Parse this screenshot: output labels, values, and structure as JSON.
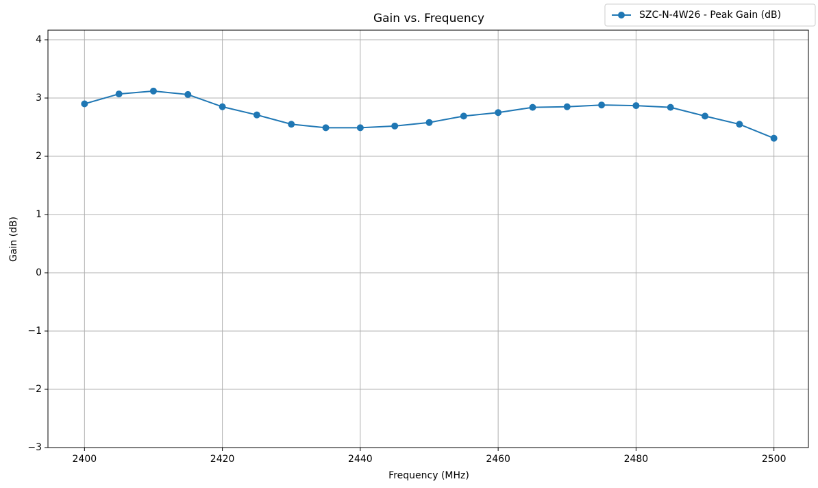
{
  "chart_data": {
    "type": "line",
    "title": "Gain vs. Frequency",
    "x_label": "Frequency (MHz)",
    "y_label": "Gain (dB)",
    "x": [
      2400,
      2405,
      2410,
      2415,
      2420,
      2425,
      2430,
      2435,
      2440,
      2445,
      2450,
      2455,
      2460,
      2465,
      2470,
      2475,
      2480,
      2485,
      2490,
      2495,
      2500
    ],
    "series": [
      {
        "name": "SZC-N-4W26 - Peak Gain (dB)",
        "color": "#1f77b4",
        "values": [
          2.9,
          3.07,
          3.12,
          3.06,
          2.85,
          2.71,
          2.55,
          2.49,
          2.49,
          2.52,
          2.58,
          2.69,
          2.75,
          2.84,
          2.85,
          2.88,
          2.87,
          2.84,
          2.69,
          2.55,
          2.31
        ]
      }
    ],
    "xlim": [
      2394.7,
      2505
    ],
    "xticks": [
      2400,
      2420,
      2440,
      2460,
      2480,
      2500
    ],
    "ylim": [
      -3,
      4.165
    ],
    "yticks": [
      {
        "value": -3,
        "label": "−3"
      },
      {
        "value": -2,
        "label": "−2"
      },
      {
        "value": -1,
        "label": "−1"
      },
      0,
      1,
      2,
      3,
      4
    ],
    "grid": true,
    "legend": "upper right",
    "marker": "circle"
  }
}
